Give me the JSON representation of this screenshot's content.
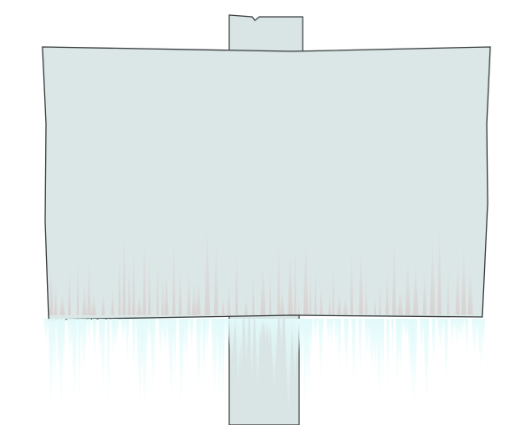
{
  "scene": {
    "subject": "blank-signboard-on-post",
    "colors": {
      "background": "#ffffff",
      "board_fill": "#dbe7e6",
      "board_texture": "#cfdedd",
      "outline": "#3a3f40",
      "post_fill": "#d9e5e4",
      "icicle": "#e9fbfb",
      "icicle_edge": "#d4f3f3",
      "streak": "#d9c6c6"
    }
  }
}
